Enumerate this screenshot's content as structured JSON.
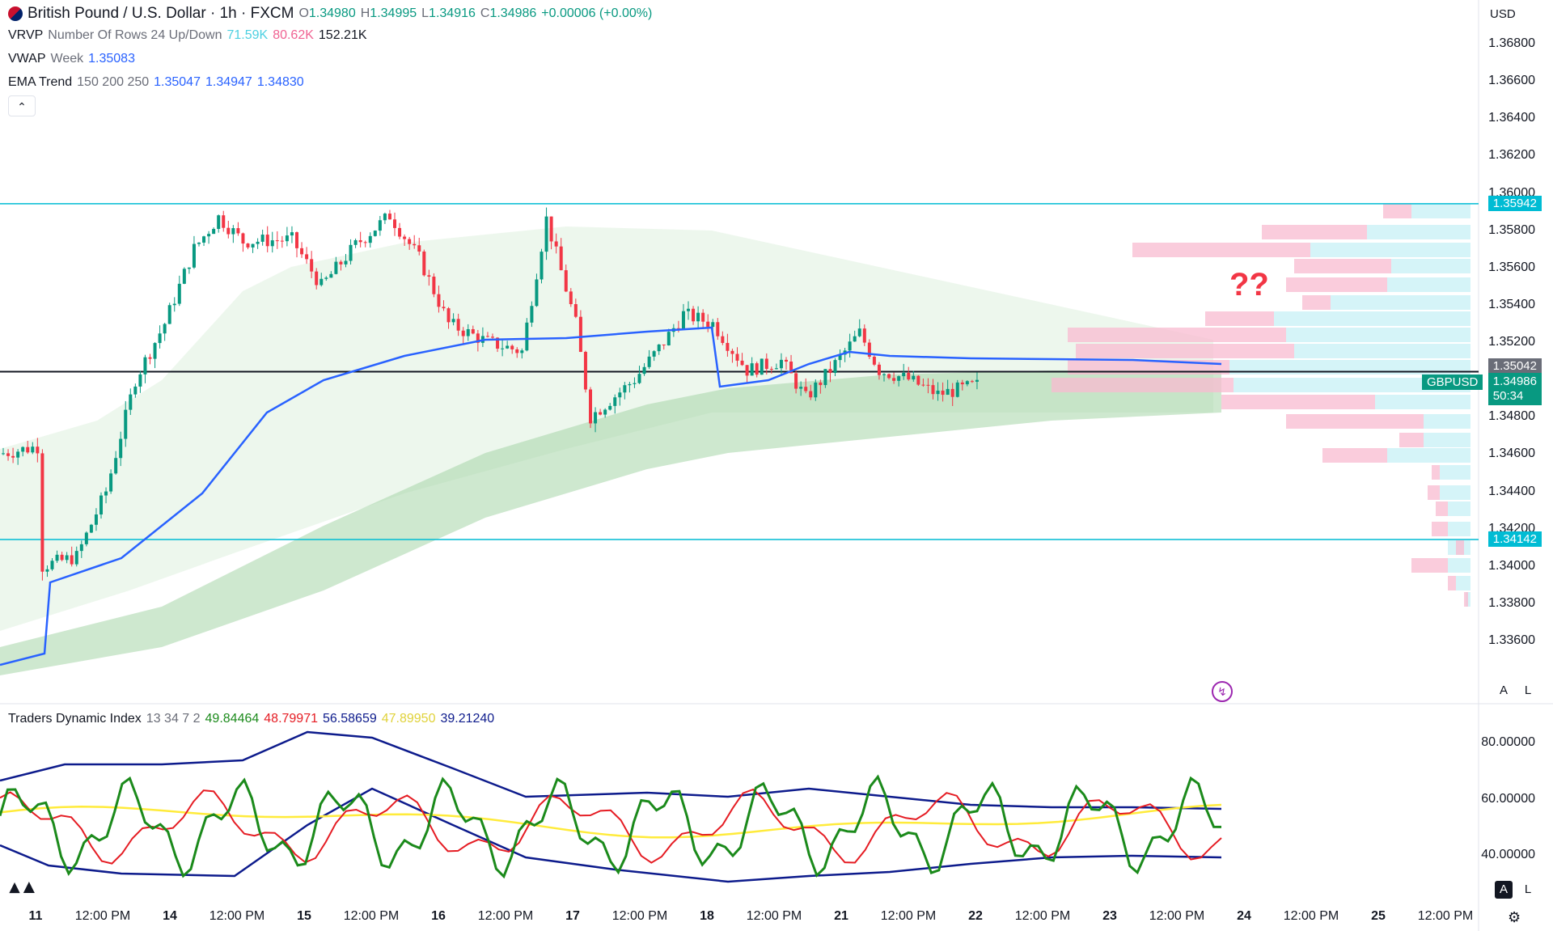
{
  "header": {
    "symbol_title": "British Pound / U.S. Dollar · 1h · FXCM",
    "open_label": "O",
    "open": "1.34980",
    "high_label": "H",
    "high": "1.34995",
    "low_label": "L",
    "low": "1.34916",
    "close_label": "C",
    "close": "1.34986",
    "change": "+0.00006 (+0.00%)",
    "collapse_icon": "chevron-up-icon"
  },
  "indicators": {
    "vrvp": {
      "name": "VRVP",
      "params": "Number Of Rows 24 Up/Down",
      "up": "71.59K",
      "down": "80.62K",
      "total": "152.21K"
    },
    "vwap": {
      "name": "VWAP",
      "params": "Week",
      "value": "1.35083"
    },
    "ema": {
      "name": "EMA Trend",
      "params": "150 200 250",
      "v1": "1.35047",
      "v2": "1.34947",
      "v3": "1.34830"
    },
    "tdi": {
      "name": "Traders Dynamic Index",
      "params": "13 34 7 2",
      "v1": "49.84464",
      "v2": "48.79971",
      "v3": "56.58659",
      "v4": "47.89950",
      "v5": "39.21240"
    }
  },
  "currency_selector": "USD",
  "annotation": "??",
  "chart_data": [
    {
      "type": "candlestick",
      "symbol": "GBPUSD",
      "y_axis_ticks": [
        "1.36800",
        "1.36600",
        "1.36400",
        "1.36200",
        "1.36000",
        "1.35800",
        "1.35600",
        "1.35400",
        "1.35200",
        "1.34800",
        "1.34600",
        "1.34400",
        "1.34200",
        "1.34000",
        "1.33800",
        "1.33600"
      ],
      "ylim": [
        1.3356,
        1.3698
      ],
      "x_axis_ticks": [
        "11",
        "12:00 PM",
        "14",
        "12:00 PM",
        "15",
        "12:00 PM",
        "16",
        "12:00 PM",
        "17",
        "12:00 PM",
        "18",
        "12:00 PM",
        "21",
        "12:00 PM",
        "22",
        "12:00 PM",
        "23",
        "12:00 PM",
        "24",
        "12:00 PM",
        "25",
        "12:00 PM"
      ],
      "horizontal_levels": [
        {
          "value": "1.35942",
          "color": "#00bcd4"
        },
        {
          "value": "1.35042",
          "color": "#131722"
        },
        {
          "value": "1.34142",
          "color": "#00bcd4"
        }
      ],
      "last_price": {
        "label": "GBPUSD",
        "value": "1.34986",
        "countdown": "50:34",
        "color": "#089981"
      },
      "vwap_color": "#2962ff",
      "up_color": "#089981",
      "down_color": "#f23645"
    },
    {
      "type": "line",
      "name": "Traders Dynamic Index",
      "y_axis_ticks": [
        "80.00000",
        "60.00000",
        "40.00000"
      ],
      "ylim": [
        30,
        90
      ],
      "colors": {
        "rsi": "#1b8a1b",
        "signal": "#e51c23",
        "mid": "#ffeb3b",
        "bands": "#0d1b8c"
      }
    }
  ],
  "axis_buttons": {
    "auto": "A",
    "log": "L"
  }
}
